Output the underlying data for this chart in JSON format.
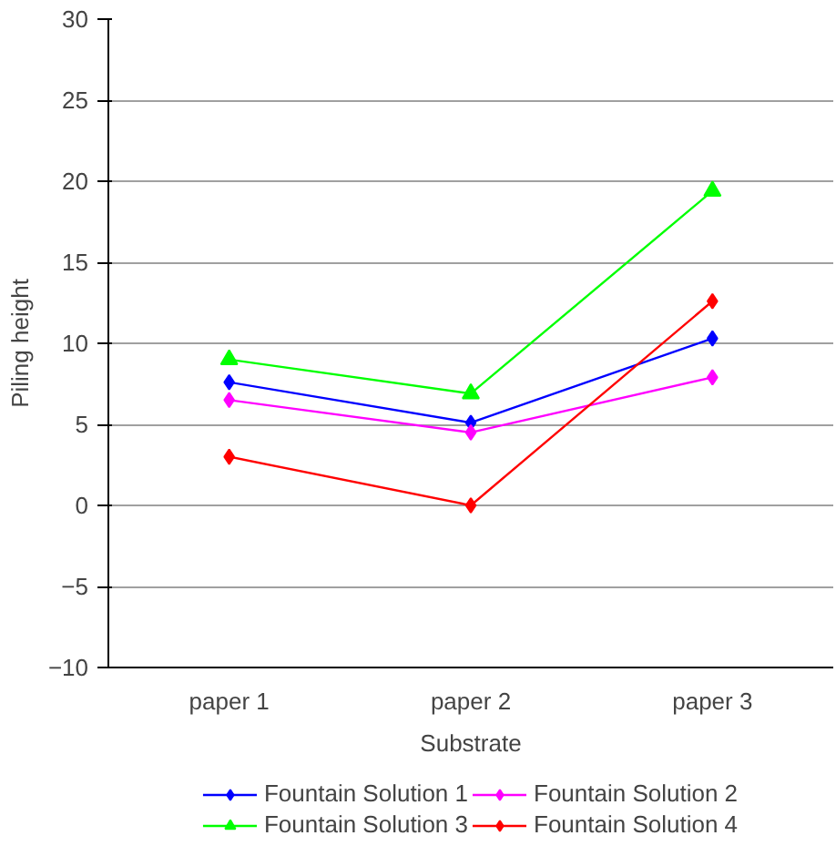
{
  "chart_data": {
    "type": "line",
    "xlabel": "Substrate",
    "ylabel": "Piling height",
    "categories": [
      "paper 1",
      "paper 2",
      "paper 3"
    ],
    "series": [
      {
        "name": "Fountain Solution 1",
        "color": "#0000ff",
        "marker": "diamond",
        "values": [
          7.6,
          5.1,
          10.3
        ]
      },
      {
        "name": "Fountain Solution 2",
        "color": "#ff00ff",
        "marker": "diamond",
        "values": [
          6.5,
          4.5,
          7.9
        ]
      },
      {
        "name": "Fountain Solution 3",
        "color": "#00ff00",
        "marker": "triangle",
        "values": [
          9.0,
          6.9,
          19.4
        ]
      },
      {
        "name": "Fountain Solution 4",
        "color": "#ff0000",
        "marker": "diamond",
        "values": [
          3.0,
          0.0,
          12.6
        ]
      }
    ],
    "ylim": [
      -10,
      30
    ],
    "yticks": [
      -10,
      -5,
      0,
      5,
      10,
      15,
      20,
      25,
      30
    ],
    "grid": "y",
    "legend": "bottom",
    "line_style": "solid"
  }
}
